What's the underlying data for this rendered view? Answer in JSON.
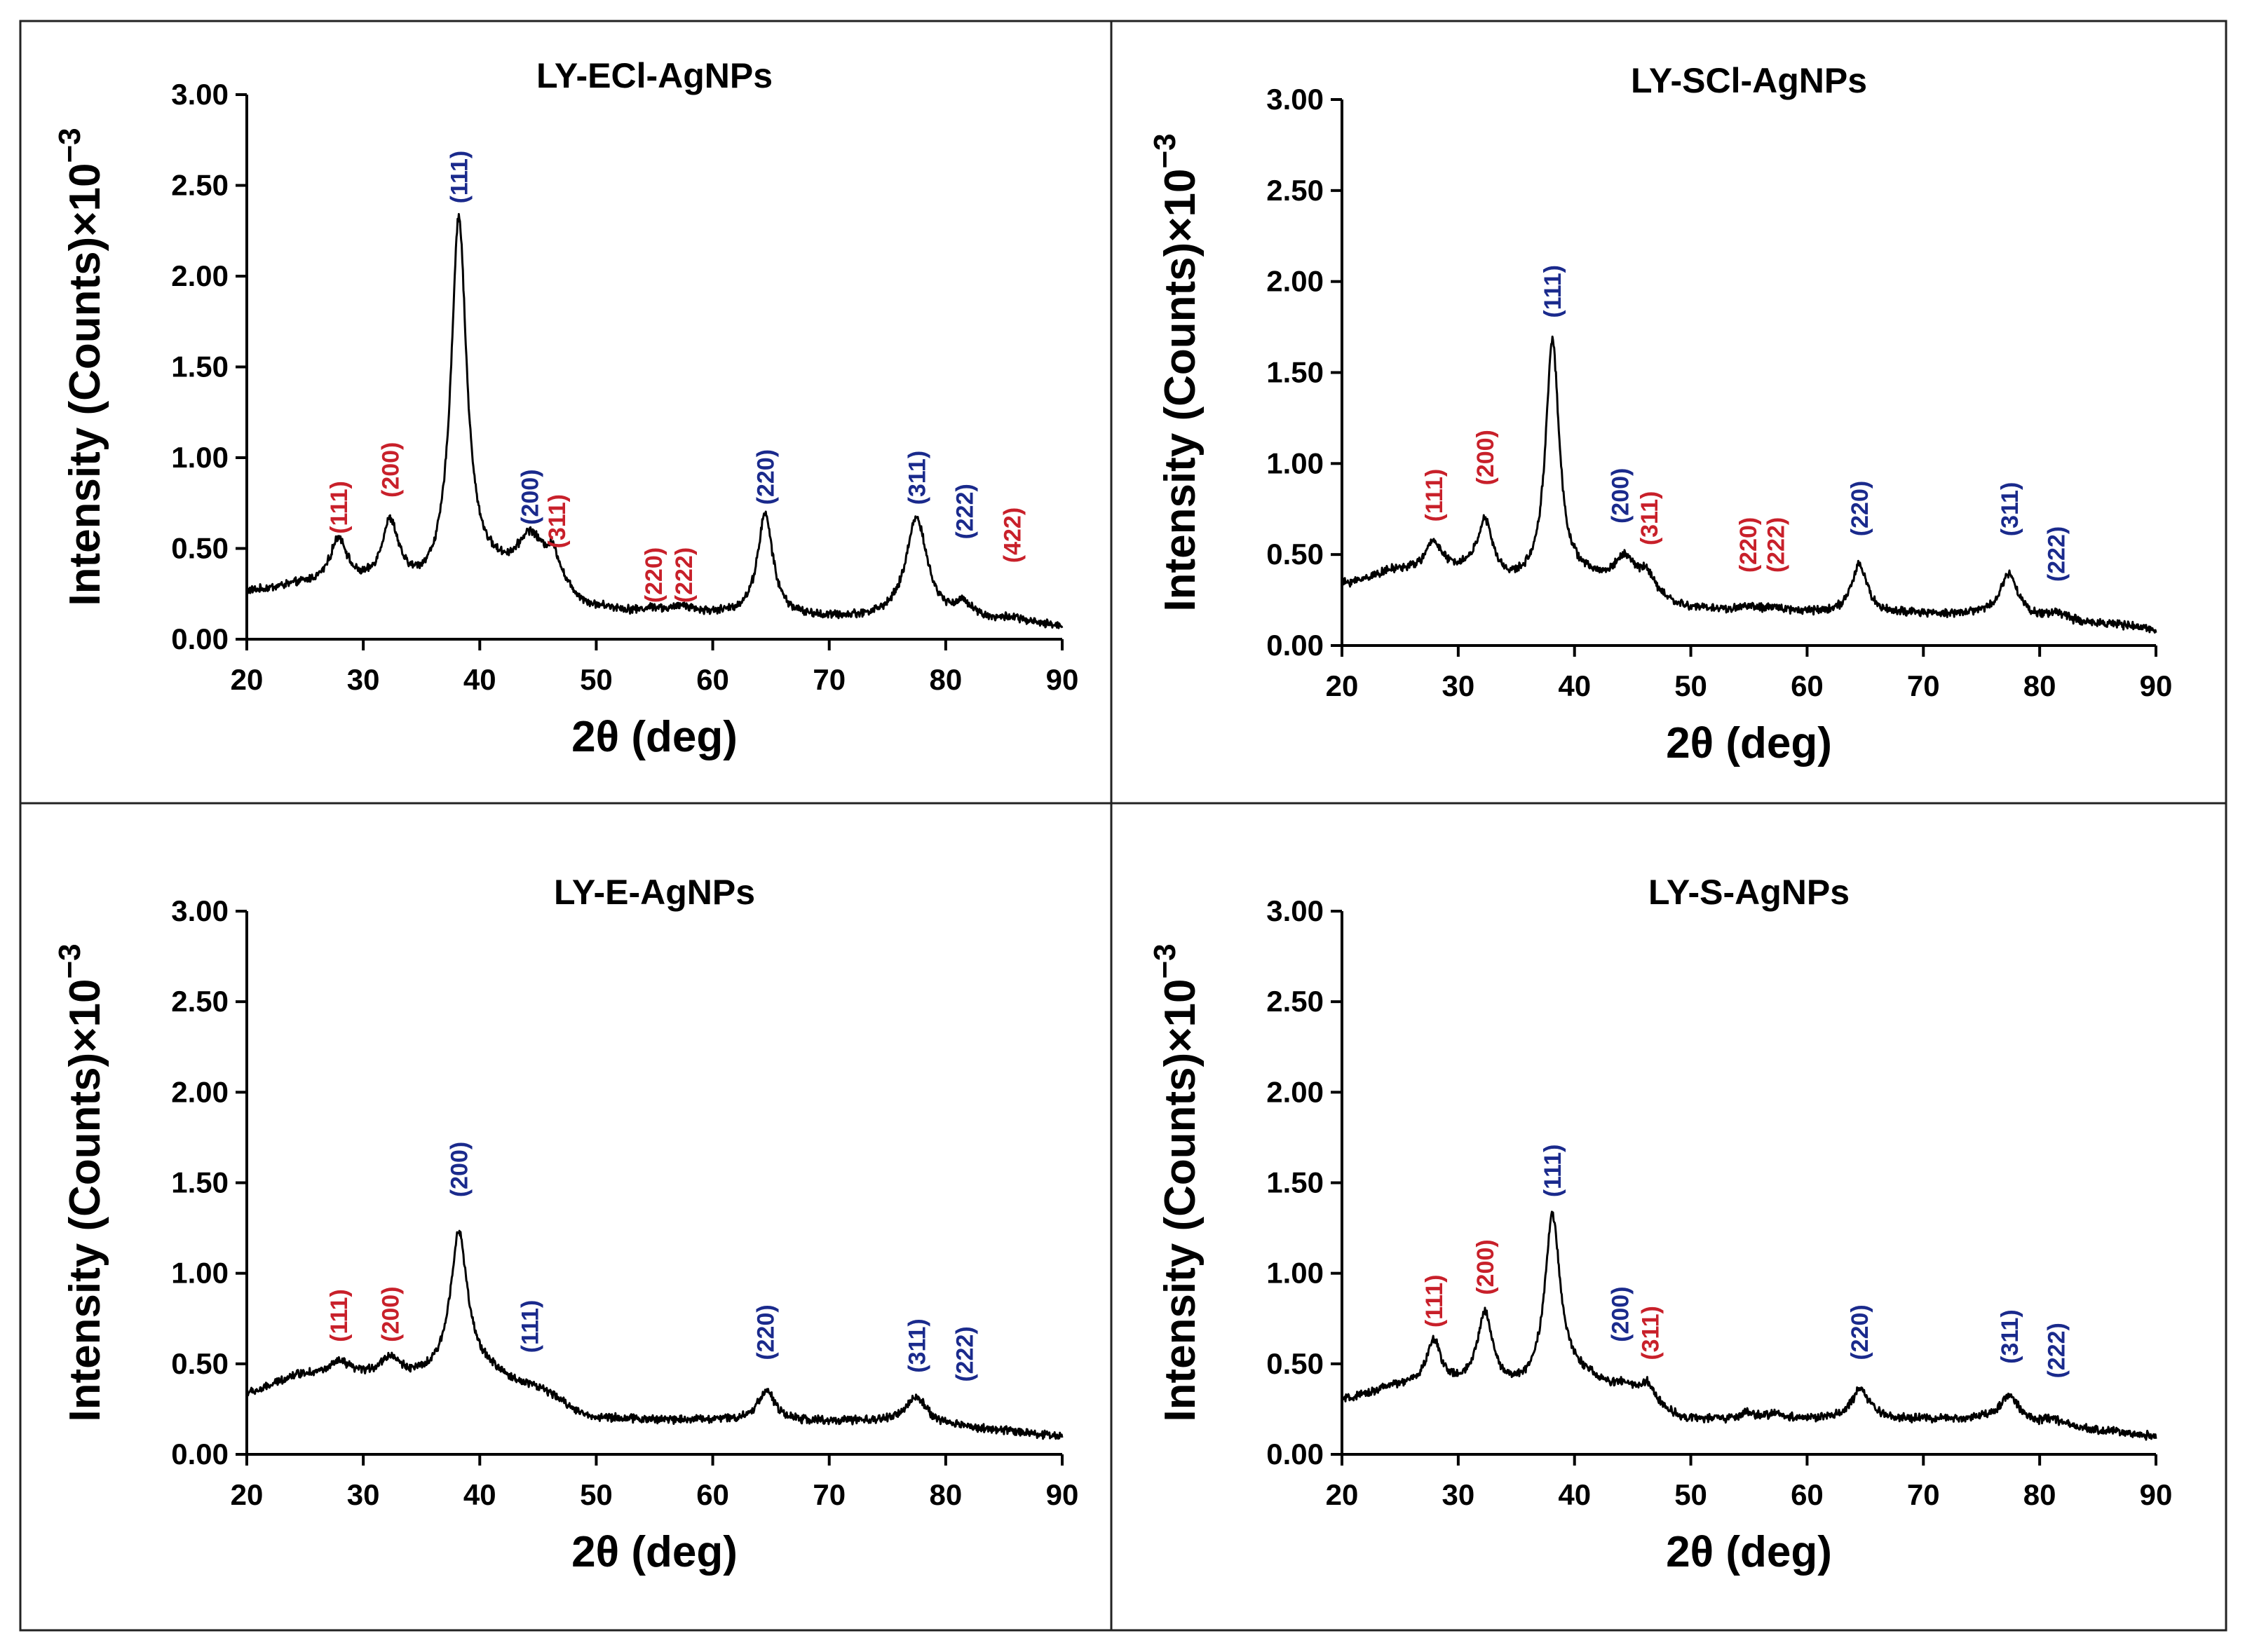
{
  "chart_data": [
    {
      "type": "line",
      "title": "LY-ECl-AgNPs",
      "xlabel": "2θ (deg)",
      "ylabel_main": "Intensity (Counts)×10",
      "ylabel_exp": "−3",
      "xlim": [
        20,
        90
      ],
      "ylim": [
        0,
        3
      ],
      "xticks": [
        "20",
        "30",
        "40",
        "50",
        "60",
        "70",
        "80",
        "90"
      ],
      "yticks": [
        "0.00",
        "0.50",
        "1.00",
        "1.50",
        "2.00",
        "2.50",
        "3.00"
      ],
      "baseline": [
        [
          20,
          0.26
        ],
        [
          25,
          0.29
        ],
        [
          30,
          0.27
        ],
        [
          35,
          0.26
        ],
        [
          40,
          0.35
        ],
        [
          45,
          0.3
        ],
        [
          50,
          0.16
        ],
        [
          55,
          0.13
        ],
        [
          60,
          0.13
        ],
        [
          65,
          0.12
        ],
        [
          70,
          0.11
        ],
        [
          75,
          0.11
        ],
        [
          80,
          0.1
        ],
        [
          85,
          0.09
        ],
        [
          90,
          0.07
        ]
      ],
      "peaks": [
        {
          "x": 27.9,
          "h": 0.26,
          "w": 0.9
        },
        {
          "x": 32.3,
          "h": 0.35,
          "w": 0.9
        },
        {
          "x": 38.2,
          "h": 1.98,
          "w": 0.8
        },
        {
          "x": 44.3,
          "h": 0.24,
          "w": 1.3
        },
        {
          "x": 46.3,
          "h": 0.15,
          "w": 0.8
        },
        {
          "x": 54.9,
          "h": 0.03,
          "w": 1.0
        },
        {
          "x": 57.5,
          "h": 0.04,
          "w": 1.0
        },
        {
          "x": 64.5,
          "h": 0.56,
          "w": 0.8
        },
        {
          "x": 77.5,
          "h": 0.56,
          "w": 1.1
        },
        {
          "x": 81.6,
          "h": 0.08,
          "w": 1.0
        },
        {
          "x": 85.7,
          "h": 0.02,
          "w": 1.0
        }
      ],
      "hkl": [
        {
          "label": "(111)",
          "x": 27.9,
          "y": 0.58,
          "color": "#c8202a"
        },
        {
          "label": "(200)",
          "x": 32.3,
          "y": 0.78,
          "color": "#c8202a"
        },
        {
          "label": "(111)",
          "x": 38.2,
          "y": 2.4,
          "color": "#1a2a8c"
        },
        {
          "label": "(200)",
          "x": 44.3,
          "y": 0.63,
          "color": "#1a2a8c"
        },
        {
          "label": "(311)",
          "x": 46.6,
          "y": 0.5,
          "color": "#c8202a"
        },
        {
          "label": "(220)",
          "x": 54.9,
          "y": 0.2,
          "color": "#c8202a"
        },
        {
          "label": "(222)",
          "x": 57.5,
          "y": 0.2,
          "color": "#c8202a"
        },
        {
          "label": "(220)",
          "x": 64.5,
          "y": 0.74,
          "color": "#1a2a8c"
        },
        {
          "label": "(311)",
          "x": 77.5,
          "y": 0.74,
          "color": "#1a2a8c"
        },
        {
          "label": "(222)",
          "x": 81.6,
          "y": 0.55,
          "color": "#1a2a8c"
        },
        {
          "label": "(422)",
          "x": 85.7,
          "y": 0.42,
          "color": "#c8202a"
        }
      ]
    },
    {
      "type": "line",
      "title": "LY-SCl-AgNPs",
      "xlabel": "2θ (deg)",
      "ylabel_main": "Intensity (Counts)×10",
      "ylabel_exp": "−3",
      "xlim": [
        20,
        90
      ],
      "ylim": [
        0,
        3
      ],
      "xticks": [
        "20",
        "30",
        "40",
        "50",
        "60",
        "70",
        "80",
        "90"
      ],
      "yticks": [
        "0.00",
        "0.50",
        "1.00",
        "1.50",
        "2.00",
        "2.50",
        "3.00"
      ],
      "baseline": [
        [
          20,
          0.34
        ],
        [
          25,
          0.41
        ],
        [
          30,
          0.4
        ],
        [
          35,
          0.33
        ],
        [
          40,
          0.36
        ],
        [
          45,
          0.3
        ],
        [
          50,
          0.2
        ],
        [
          55,
          0.18
        ],
        [
          60,
          0.18
        ],
        [
          65,
          0.17
        ],
        [
          70,
          0.17
        ],
        [
          75,
          0.17
        ],
        [
          80,
          0.14
        ],
        [
          85,
          0.12
        ],
        [
          90,
          0.09
        ]
      ],
      "peaks": [
        {
          "x": 27.9,
          "h": 0.16,
          "w": 0.8
        },
        {
          "x": 32.3,
          "h": 0.3,
          "w": 0.8
        },
        {
          "x": 38.1,
          "h": 1.32,
          "w": 0.7
        },
        {
          "x": 44.3,
          "h": 0.17,
          "w": 1.1
        },
        {
          "x": 46.2,
          "h": 0.09,
          "w": 0.7
        },
        {
          "x": 54.9,
          "h": 0.03,
          "w": 1.0
        },
        {
          "x": 57.5,
          "h": 0.02,
          "w": 1.0
        },
        {
          "x": 64.5,
          "h": 0.27,
          "w": 0.8
        },
        {
          "x": 77.4,
          "h": 0.24,
          "w": 0.9
        },
        {
          "x": 81.5,
          "h": 0.04,
          "w": 0.9
        }
      ],
      "hkl": [
        {
          "label": "(111)",
          "x": 27.9,
          "y": 0.68,
          "color": "#c8202a"
        },
        {
          "label": "(200)",
          "x": 32.3,
          "y": 0.88,
          "color": "#c8202a"
        },
        {
          "label": "(111)",
          "x": 38.1,
          "y": 1.8,
          "color": "#1a2a8c"
        },
        {
          "label": "(200)",
          "x": 43.9,
          "y": 0.67,
          "color": "#1a2a8c"
        },
        {
          "label": "(311)",
          "x": 46.4,
          "y": 0.55,
          "color": "#c8202a"
        },
        {
          "label": "(220)",
          "x": 54.9,
          "y": 0.4,
          "color": "#c8202a"
        },
        {
          "label": "(222)",
          "x": 57.3,
          "y": 0.4,
          "color": "#c8202a"
        },
        {
          "label": "(220)",
          "x": 64.5,
          "y": 0.6,
          "color": "#1a2a8c"
        },
        {
          "label": "(311)",
          "x": 77.4,
          "y": 0.6,
          "color": "#1a2a8c"
        },
        {
          "label": "(222)",
          "x": 81.4,
          "y": 0.35,
          "color": "#1a2a8c"
        }
      ]
    },
    {
      "type": "line",
      "title": "LY-E-AgNPs",
      "xlabel": "2θ (deg)",
      "ylabel_main": "Intensity (Counts)×10",
      "ylabel_exp": "−3",
      "xlim": [
        20,
        90
      ],
      "ylim": [
        0,
        3
      ],
      "xticks": [
        "20",
        "30",
        "40",
        "50",
        "60",
        "70",
        "80",
        "90"
      ],
      "yticks": [
        "0.00",
        "0.50",
        "1.00",
        "1.50",
        "2.00",
        "2.50",
        "3.00"
      ],
      "baseline": [
        [
          20,
          0.34
        ],
        [
          25,
          0.44
        ],
        [
          30,
          0.43
        ],
        [
          35,
          0.42
        ],
        [
          40,
          0.45
        ],
        [
          45,
          0.33
        ],
        [
          50,
          0.2
        ],
        [
          55,
          0.19
        ],
        [
          60,
          0.19
        ],
        [
          65,
          0.18
        ],
        [
          70,
          0.18
        ],
        [
          75,
          0.18
        ],
        [
          80,
          0.16
        ],
        [
          85,
          0.13
        ],
        [
          90,
          0.1
        ]
      ],
      "peaks": [
        {
          "x": 28,
          "h": 0.07,
          "w": 1.0
        },
        {
          "x": 32.3,
          "h": 0.1,
          "w": 1.0
        },
        {
          "x": 38.2,
          "h": 0.78,
          "w": 0.9
        },
        {
          "x": 44.3,
          "h": 0.04,
          "w": 1.2
        },
        {
          "x": 64.6,
          "h": 0.17,
          "w": 0.9
        },
        {
          "x": 77.5,
          "h": 0.15,
          "w": 1.0
        }
      ],
      "hkl": [
        {
          "label": "(111)",
          "x": 27.9,
          "y": 0.62,
          "color": "#c8202a"
        },
        {
          "label": "(200)",
          "x": 32.3,
          "y": 0.62,
          "color": "#c8202a"
        },
        {
          "label": "(200)",
          "x": 38.2,
          "y": 1.42,
          "color": "#1a2a8c"
        },
        {
          "label": "(111)",
          "x": 44.3,
          "y": 0.56,
          "color": "#1a2a8c"
        },
        {
          "label": "(220)",
          "x": 64.5,
          "y": 0.52,
          "color": "#1a2a8c"
        },
        {
          "label": "(311)",
          "x": 77.5,
          "y": 0.45,
          "color": "#1a2a8c"
        },
        {
          "label": "(222)",
          "x": 81.6,
          "y": 0.4,
          "color": "#1a2a8c"
        }
      ]
    },
    {
      "type": "line",
      "title": "LY-S-AgNPs",
      "xlabel": "2θ (deg)",
      "ylabel_main": "Intensity (Counts)×10",
      "ylabel_exp": "−3",
      "xlim": [
        20,
        90
      ],
      "ylim": [
        0,
        3
      ],
      "xticks": [
        "20",
        "30",
        "40",
        "50",
        "60",
        "70",
        "80",
        "90"
      ],
      "yticks": [
        "0.00",
        "0.50",
        "1.00",
        "1.50",
        "2.00",
        "2.50",
        "3.00"
      ],
      "baseline": [
        [
          20,
          0.3
        ],
        [
          25,
          0.37
        ],
        [
          30,
          0.36
        ],
        [
          35,
          0.35
        ],
        [
          40,
          0.42
        ],
        [
          45,
          0.3
        ],
        [
          50,
          0.19
        ],
        [
          55,
          0.18
        ],
        [
          60,
          0.19
        ],
        [
          65,
          0.19
        ],
        [
          70,
          0.19
        ],
        [
          75,
          0.19
        ],
        [
          80,
          0.16
        ],
        [
          85,
          0.13
        ],
        [
          90,
          0.1
        ]
      ],
      "peaks": [
        {
          "x": 27.9,
          "h": 0.25,
          "w": 0.8
        },
        {
          "x": 32.3,
          "h": 0.41,
          "w": 0.8
        },
        {
          "x": 38.1,
          "h": 0.91,
          "w": 0.8
        },
        {
          "x": 44.3,
          "h": 0.07,
          "w": 1.1
        },
        {
          "x": 46.3,
          "h": 0.09,
          "w": 0.7
        },
        {
          "x": 54.9,
          "h": 0.04,
          "w": 1.0
        },
        {
          "x": 57.3,
          "h": 0.03,
          "w": 1.0
        },
        {
          "x": 64.6,
          "h": 0.17,
          "w": 0.9
        },
        {
          "x": 77.4,
          "h": 0.15,
          "w": 1.0
        },
        {
          "x": 81.3,
          "h": 0.03,
          "w": 1.0
        }
      ],
      "hkl": [
        {
          "label": "(111)",
          "x": 27.9,
          "y": 0.7,
          "color": "#c8202a"
        },
        {
          "label": "(200)",
          "x": 32.3,
          "y": 0.88,
          "color": "#c8202a"
        },
        {
          "label": "(111)",
          "x": 38.1,
          "y": 1.42,
          "color": "#1a2a8c"
        },
        {
          "label": "(200)",
          "x": 43.9,
          "y": 0.62,
          "color": "#1a2a8c"
        },
        {
          "label": "(311)",
          "x": 46.5,
          "y": 0.52,
          "color": "#c8202a"
        },
        {
          "label": "(220)",
          "x": 64.5,
          "y": 0.52,
          "color": "#1a2a8c"
        },
        {
          "label": "(311)",
          "x": 77.4,
          "y": 0.5,
          "color": "#1a2a8c"
        },
        {
          "label": "(222)",
          "x": 81.4,
          "y": 0.42,
          "color": "#1a2a8c"
        }
      ]
    }
  ]
}
